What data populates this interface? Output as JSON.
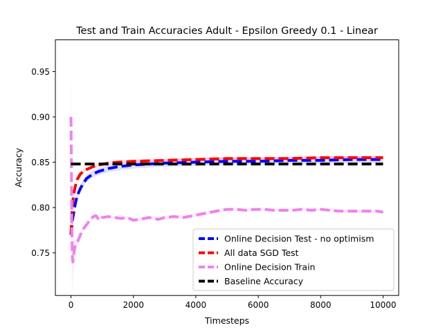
{
  "chart_data": {
    "type": "line",
    "title": "Test and Train Accuracies Adult - Epsilon Greedy 0.1 - Linear",
    "xlabel": "Timesteps",
    "ylabel": "Accuracy",
    "xlim": [
      -500,
      10500
    ],
    "ylim": [
      0.703,
      0.985
    ],
    "xticks": [
      0,
      2000,
      4000,
      6000,
      8000,
      10000
    ],
    "xtick_labels": [
      "0",
      "2000",
      "4000",
      "6000",
      "8000",
      "10000"
    ],
    "yticks": [
      0.75,
      0.8,
      0.85,
      0.9,
      0.95
    ],
    "ytick_labels": [
      "0.75",
      "0.80",
      "0.85",
      "0.90",
      "0.95"
    ],
    "grid": false,
    "legend_position": "lower-right",
    "series": [
      {
        "name": "Online Decision Test - no optimism",
        "color": "#0000ff",
        "style": "dashed",
        "x": [
          0,
          25,
          50,
          100,
          150,
          200,
          300,
          400,
          500,
          700,
          900,
          1200,
          1500,
          2000,
          2500,
          3000,
          4000,
          5000,
          6000,
          7000,
          8000,
          9000,
          10000
        ],
        "y": [
          0.77,
          0.779,
          0.787,
          0.797,
          0.806,
          0.813,
          0.821,
          0.827,
          0.832,
          0.837,
          0.84,
          0.843,
          0.845,
          0.847,
          0.848,
          0.849,
          0.85,
          0.851,
          0.851,
          0.852,
          0.852,
          0.853,
          0.853
        ],
        "band": 0.004
      },
      {
        "name": "All data SGD Test",
        "color": "#ff0000",
        "style": "dashed",
        "x": [
          0,
          25,
          50,
          100,
          150,
          200,
          300,
          400,
          500,
          700,
          900,
          1200,
          1500,
          2000,
          3000,
          4000,
          5000,
          6000,
          7000,
          8000,
          9000,
          10000
        ],
        "y": [
          0.77,
          0.79,
          0.805,
          0.817,
          0.825,
          0.831,
          0.837,
          0.84,
          0.842,
          0.845,
          0.847,
          0.849,
          0.85,
          0.851,
          0.852,
          0.853,
          0.854,
          0.854,
          0.854,
          0.855,
          0.855,
          0.855
        ],
        "band": 0.002
      },
      {
        "name": "Online Decision Train",
        "color": "#ee82ee",
        "style": "dashed",
        "x": [
          0,
          10,
          20,
          30,
          45,
          60,
          80,
          100,
          130,
          170,
          220,
          280,
          350,
          430,
          520,
          620,
          720,
          800,
          900,
          1000,
          1200,
          1400,
          1600,
          1800,
          2000,
          2200,
          2500,
          2800,
          3000,
          3300,
          3600,
          3900,
          4200,
          4500,
          4800,
          5000,
          5300,
          5600,
          5900,
          6200,
          6500,
          6800,
          7100,
          7400,
          7700,
          8000,
          8300,
          8600,
          8900,
          9200,
          9500,
          9800,
          10000
        ],
        "y": [
          0.9,
          0.86,
          0.81,
          0.77,
          0.745,
          0.74,
          0.745,
          0.752,
          0.757,
          0.76,
          0.763,
          0.768,
          0.774,
          0.778,
          0.782,
          0.787,
          0.79,
          0.791,
          0.786,
          0.789,
          0.79,
          0.789,
          0.788,
          0.789,
          0.786,
          0.787,
          0.789,
          0.787,
          0.789,
          0.79,
          0.789,
          0.791,
          0.793,
          0.795,
          0.797,
          0.798,
          0.798,
          0.797,
          0.798,
          0.798,
          0.797,
          0.797,
          0.797,
          0.798,
          0.797,
          0.798,
          0.797,
          0.796,
          0.796,
          0.796,
          0.796,
          0.796,
          0.795
        ],
        "band_top": [
          0.97,
          0.94,
          0.89,
          0.84,
          0.8,
          0.78,
          0.77,
          0.768,
          0.766,
          0.766,
          0.768,
          0.772,
          0.778,
          0.781,
          0.785,
          0.79,
          0.793,
          0.794,
          0.789,
          0.791,
          0.792,
          0.791,
          0.79,
          0.791,
          0.788,
          0.789,
          0.791,
          0.789,
          0.791,
          0.792,
          0.791,
          0.793,
          0.795,
          0.797,
          0.799,
          0.8,
          0.8,
          0.799,
          0.8,
          0.8,
          0.799,
          0.799,
          0.799,
          0.8,
          0.799,
          0.8,
          0.799,
          0.798,
          0.798,
          0.798,
          0.798,
          0.798,
          0.797
        ],
        "band_bottom": [
          0.83,
          0.78,
          0.74,
          0.715,
          0.705,
          0.712,
          0.725,
          0.736,
          0.746,
          0.752,
          0.757,
          0.763,
          0.77,
          0.775,
          0.779,
          0.784,
          0.787,
          0.788,
          0.783,
          0.787,
          0.788,
          0.787,
          0.786,
          0.787,
          0.784,
          0.785,
          0.787,
          0.785,
          0.787,
          0.788,
          0.787,
          0.789,
          0.791,
          0.793,
          0.795,
          0.796,
          0.796,
          0.795,
          0.796,
          0.796,
          0.795,
          0.795,
          0.795,
          0.796,
          0.795,
          0.796,
          0.795,
          0.794,
          0.794,
          0.794,
          0.794,
          0.794,
          0.793
        ]
      },
      {
        "name": "Baseline Accuracy",
        "color": "#000000",
        "style": "dashed",
        "x": [
          0,
          10000
        ],
        "y": [
          0.848,
          0.848
        ]
      }
    ]
  }
}
